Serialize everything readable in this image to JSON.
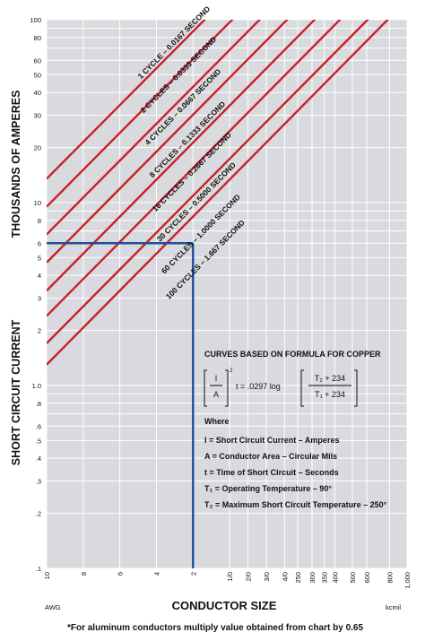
{
  "chart_data": {
    "type": "line",
    "title": "",
    "ylabel": "SHORT CIRCUIT CURRENT — THOUSANDS OF AMPERES",
    "ylabel_parts": [
      "SHORT CIRCUIT CURRENT",
      "THOUSANDS OF AMPERES"
    ],
    "xlabel": "CONDUCTOR SIZE",
    "x_unit_left": "AWG",
    "x_unit_right": "kcmil",
    "y_scale": "log",
    "ylim": [
      0.1,
      100
    ],
    "x_scale": "log (circular mils)",
    "xlim_cmil": [
      10380,
      1000000
    ],
    "grid": true,
    "y_ticks": [
      {
        "v": 100,
        "label": "100"
      },
      {
        "v": 80,
        "label": "80"
      },
      {
        "v": 60,
        "label": "60"
      },
      {
        "v": 50,
        "label": "50"
      },
      {
        "v": 40,
        "label": "40"
      },
      {
        "v": 30,
        "label": "30"
      },
      {
        "v": 20,
        "label": "20"
      },
      {
        "v": 10,
        "label": "10"
      },
      {
        "v": 8,
        "label": "8"
      },
      {
        "v": 6,
        "label": "6"
      },
      {
        "v": 5,
        "label": "5"
      },
      {
        "v": 4,
        "label": "4"
      },
      {
        "v": 3,
        "label": "3"
      },
      {
        "v": 2,
        "label": "2"
      },
      {
        "v": 1,
        "label": "1.0"
      },
      {
        "v": 0.8,
        "label": ".8"
      },
      {
        "v": 0.6,
        "label": ".6"
      },
      {
        "v": 0.5,
        "label": ".5"
      },
      {
        "v": 0.4,
        "label": ".4"
      },
      {
        "v": 0.3,
        "label": ".3"
      },
      {
        "v": 0.2,
        "label": ".2"
      },
      {
        "v": 0.1,
        "label": ".1"
      }
    ],
    "y_minor": [
      90,
      70,
      9,
      7,
      0.9,
      0.7
    ],
    "x_ticks": [
      {
        "cmil": 10380,
        "label": "10"
      },
      {
        "cmil": 16510,
        "label": "8"
      },
      {
        "cmil": 26240,
        "label": "6"
      },
      {
        "cmil": 41740,
        "label": "4"
      },
      {
        "cmil": 66360,
        "label": "2"
      },
      {
        "cmil": 105600,
        "label": "1/0"
      },
      {
        "cmil": 133100,
        "label": "2/0"
      },
      {
        "cmil": 167800,
        "label": "3/0"
      },
      {
        "cmil": 211600,
        "label": "4/0"
      },
      {
        "cmil": 250000,
        "label": "250"
      },
      {
        "cmil": 300000,
        "label": "300"
      },
      {
        "cmil": 350000,
        "label": "350"
      },
      {
        "cmil": 400000,
        "label": "400"
      },
      {
        "cmil": 500000,
        "label": "500"
      },
      {
        "cmil": 600000,
        "label": "600"
      },
      {
        "cmil": 800000,
        "label": "800"
      },
      {
        "cmil": 1000000,
        "label": "1,000"
      }
    ],
    "series_values_at": "y in thousands of amperes at x = 10 AWG (10380 cmil) and x = 1,000 kcmil; lines are straight on log-log axes",
    "series": [
      {
        "name": "1 CYCLE – 0.0167 SECOND",
        "y_start": 13.5,
        "y_end": 1300
      },
      {
        "name": "2 CYCLES – 0.0333 SECOND",
        "y_start": 9.5,
        "y_end": 920
      },
      {
        "name": "4 CYCLES – 0.0667 SECOND",
        "y_start": 6.7,
        "y_end": 650
      },
      {
        "name": "8 CYCLES – 0.1333 SECOND",
        "y_start": 4.7,
        "y_end": 460
      },
      {
        "name": "16 CYCLES – 0.2667 SECOND",
        "y_start": 3.3,
        "y_end": 325
      },
      {
        "name": "30 CYCLES – 0.5000 SECOND",
        "y_start": 2.4,
        "y_end": 235
      },
      {
        "name": "60 CYCLES – 1.0000 SECOND",
        "y_start": 1.7,
        "y_end": 165
      },
      {
        "name": "100 CYCLES – 1.667 SECOND",
        "y_start": 1.3,
        "y_end": 128
      }
    ],
    "example": {
      "awg": "2",
      "cmil": 66360,
      "y": 6
    },
    "formula": {
      "heading": "CURVES BASED ON FORMULA FOR COPPER",
      "frac1_num": "I",
      "frac1_den": "A",
      "exponent": "2",
      "middle": "t = .0297 log",
      "frac2_num": "T₂ + 234",
      "frac2_den": "T₁ + 234"
    },
    "where": "Where",
    "definitions": [
      "I = Short Circuit Current – Amperes",
      "A = Conductor Area – Circular Mils",
      "t = Time of Short Circuit – Seconds",
      "T₁ = Operating Temperature – 90°",
      "T₂ = Maximum Short Circuit Temperature – 250°"
    ],
    "footnote": "*For aluminum conductors multiply value obtained from chart by 0.65"
  },
  "colors": {
    "background": "#d9dadd",
    "grid": "#ffffff",
    "curve": "#c8202f",
    "example_line": "#1d4f9c",
    "text": "#111111"
  }
}
